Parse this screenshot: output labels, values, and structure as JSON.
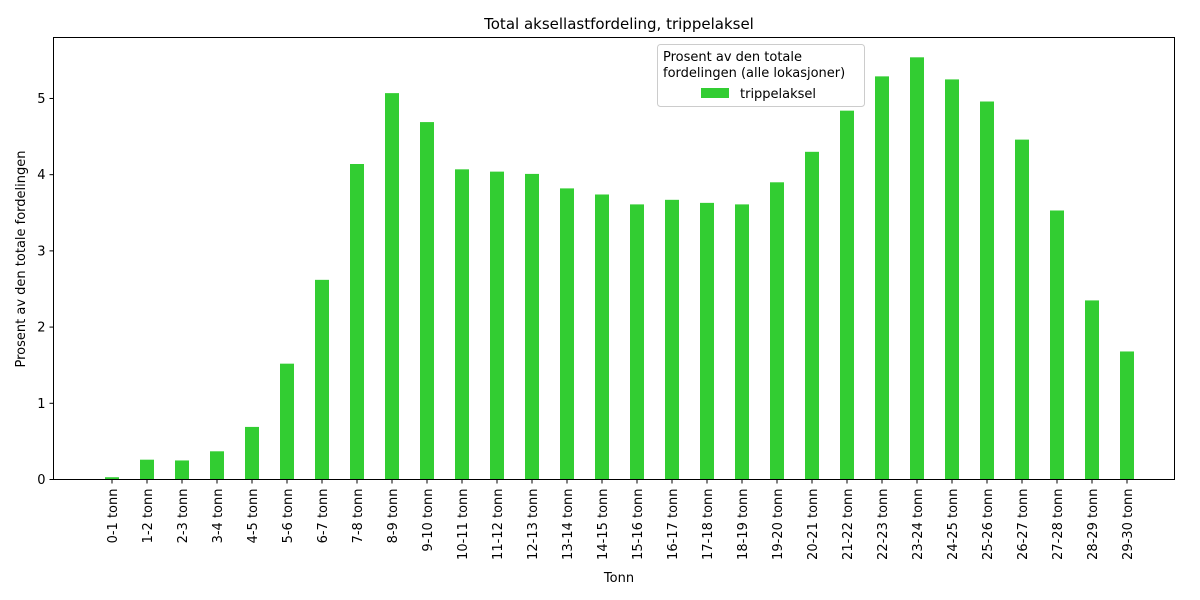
{
  "chart_data": {
    "type": "bar",
    "title": "Total aksellastfordeling, trippelaksel",
    "xlabel": "Tonn",
    "ylabel": "Prosent av den totale fordelingen",
    "ylim": [
      0,
      5.8
    ],
    "yticks": [
      0,
      1,
      2,
      3,
      4,
      5
    ],
    "grid": false,
    "legend": {
      "title_lines": [
        "Prosent av den totale",
        "fordelingen (alle lokasjoner)"
      ],
      "placement": "top-center"
    },
    "categories": [
      "0-1 tonn",
      "1-2 tonn",
      "2-3 tonn",
      "3-4 tonn",
      "4-5 tonn",
      "5-6 tonn",
      "6-7 tonn",
      "7-8 tonn",
      "8-9 tonn",
      "9-10 tonn",
      "10-11 tonn",
      "11-12 tonn",
      "12-13 tonn",
      "13-14 tonn",
      "14-15 tonn",
      "15-16 tonn",
      "16-17 tonn",
      "17-18 tonn",
      "18-19 tonn",
      "19-20 tonn",
      "20-21 tonn",
      "21-22 tonn",
      "22-23 tonn",
      "23-24 tonn",
      "24-25 tonn",
      "25-26 tonn",
      "26-27 tonn",
      "27-28 tonn",
      "28-29 tonn",
      "29-30 tonn"
    ],
    "series": [
      {
        "name": "trippelaksel",
        "color": "#32cd32",
        "values": [
          0.03,
          0.26,
          0.25,
          0.37,
          0.69,
          1.52,
          2.62,
          4.14,
          5.07,
          4.69,
          4.07,
          4.04,
          4.01,
          3.82,
          3.74,
          3.61,
          3.67,
          3.63,
          3.61,
          3.9,
          4.3,
          4.84,
          5.29,
          5.54,
          5.25,
          4.96,
          4.46,
          3.53,
          2.35,
          1.68
        ]
      }
    ]
  }
}
